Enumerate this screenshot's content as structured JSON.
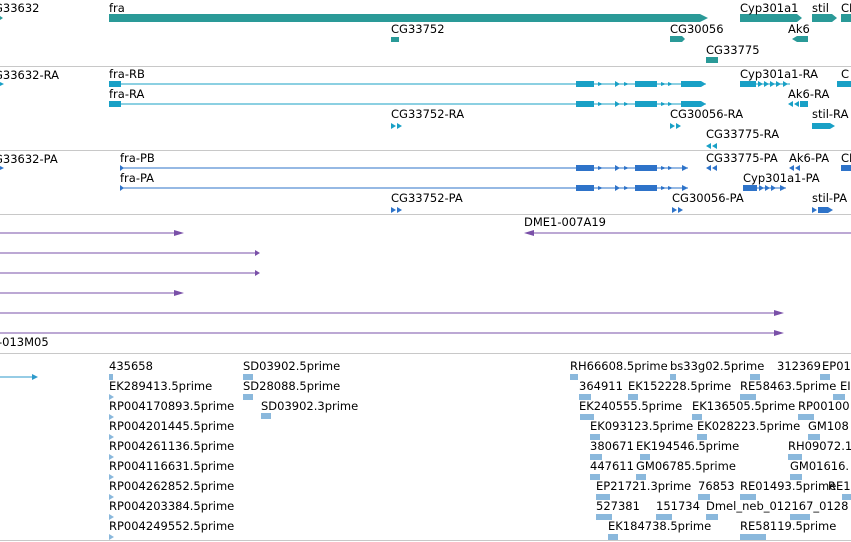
{
  "colors": {
    "gene": "#2a9a98",
    "transcript": "#19a0c6",
    "protein": "#2e73c9",
    "clone": "#7a50a8",
    "est": "#8ab8dc",
    "separator": "#c8c8c8"
  },
  "tracks": {
    "genes": {
      "labels": [
        "G33632",
        "fra",
        "CG33752",
        "CG30056",
        "CG33775",
        "Cyp301a1",
        "Ak6",
        "stil",
        "CI"
      ]
    },
    "transcripts": {
      "labels": [
        "G33632-RA",
        "fra-RB",
        "fra-RA",
        "CG33752-RA",
        "CG30056-RA",
        "CG33775-RA",
        "Cyp301a1-RA",
        "Ak6-RA",
        "stil-RA",
        "C"
      ]
    },
    "proteins": {
      "labels": [
        "G33632-PA",
        "fra-PB",
        "fra-PA",
        "CG33752-PA",
        "CG33775-PA",
        "Ak6-PA",
        "CI",
        "Cyp301a1-PA",
        "CG30056-PA",
        "stil-PA"
      ]
    },
    "clones": {
      "labels": [
        "DME1-007A19",
        "-013M05"
      ]
    },
    "ests": {
      "labels": [
        "435658",
        "SD03902.5prime",
        "RH66608.5prime",
        "bs33g02.5prime",
        "312369",
        "EP01",
        "EK289413.5prime",
        "SD28088.5prime",
        "364911",
        "EK152228.5prime",
        "RE58463.5prime",
        "EI",
        "RP004170893.5prime",
        "SD03902.3prime",
        "EK240555.5prime",
        "EK136505.5prime",
        "RP00100",
        "RP004201445.5prime",
        "EK093123.5prime",
        "EK028223.5prime",
        "GM108",
        "RP004261136.5prime",
        "380671",
        "EK194546.5prime",
        "RH09072.1",
        "RP004116631.5prime",
        "447611",
        "GM06785.5prime",
        "GM01616.",
        "RP004262852.5prime",
        "EP21721.3prime",
        "76853",
        "RE01493.5prime",
        "RE1",
        "RP004203384.5prime",
        "527381",
        "151734",
        "Dmel_neb_012167_0128",
        "RP004249552.5prime",
        "EK184738.5prime",
        "RE58119.5prime"
      ]
    }
  }
}
